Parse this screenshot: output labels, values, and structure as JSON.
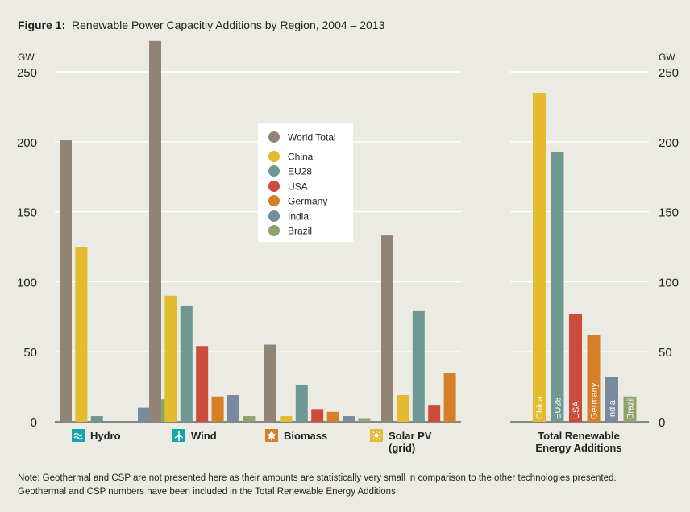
{
  "title": {
    "prefix": "Figure 1:",
    "text": "Renewable Power Capacitiy Additions by Region, 2004 – 2013"
  },
  "note": {
    "line1": "Note: Geothermal and CSP are not presented here as their amounts are statistically very small in comparison to the other technologies presented.",
    "line2": "Geothermal and CSP numbers have been included in the Total Renewable Energy Additions."
  },
  "colors": {
    "World Total": "#928474",
    "China": "#e2bb2e",
    "EU28": "#6f9893",
    "USA": "#cc4b3a",
    "Germany": "#d57f28",
    "India": "#7a8a9e",
    "Brazil": "#8ca36c",
    "icon": "#12a7aa"
  },
  "chart_data": [
    {
      "type": "bar",
      "unit": "GW",
      "ylim": [
        0,
        250
      ],
      "yticks": [
        0,
        50,
        100,
        150,
        200,
        250
      ],
      "grid": true,
      "legend_position": "top-center",
      "categories": [
        {
          "label": "Hydro",
          "icon": "hydro-icon"
        },
        {
          "label": "Wind",
          "icon": "wind-icon"
        },
        {
          "label": "Biomass",
          "icon": "biomass-icon"
        },
        {
          "label": "Solar PV",
          "sublabel": "(grid)",
          "icon": "solar-icon"
        }
      ],
      "series": [
        {
          "name": "World Total",
          "values": [
            201,
            272,
            55,
            133
          ]
        },
        {
          "name": "China",
          "values": [
            125,
            90,
            4,
            19
          ]
        },
        {
          "name": "EU28",
          "values": [
            4,
            83,
            26,
            79
          ]
        },
        {
          "name": "USA",
          "values": [
            0,
            54,
            9,
            12
          ]
        },
        {
          "name": "Germany",
          "values": [
            0,
            18,
            7,
            35
          ]
        },
        {
          "name": "India",
          "values": [
            10,
            19,
            4,
            0
          ]
        },
        {
          "name": "Brazil",
          "values": [
            16,
            4,
            2,
            0
          ]
        }
      ]
    },
    {
      "type": "bar",
      "unit": "GW",
      "ylim": [
        0,
        250
      ],
      "yticks": [
        0,
        50,
        100,
        150,
        200,
        250
      ],
      "grid": true,
      "xlabel": "Total Renewable",
      "xlabel2": "Energy Additions",
      "categories": [
        "China",
        "EU28",
        "USA",
        "Germany",
        "India",
        "Brazil"
      ],
      "values": [
        235,
        193,
        77,
        62,
        32,
        18
      ]
    }
  ]
}
